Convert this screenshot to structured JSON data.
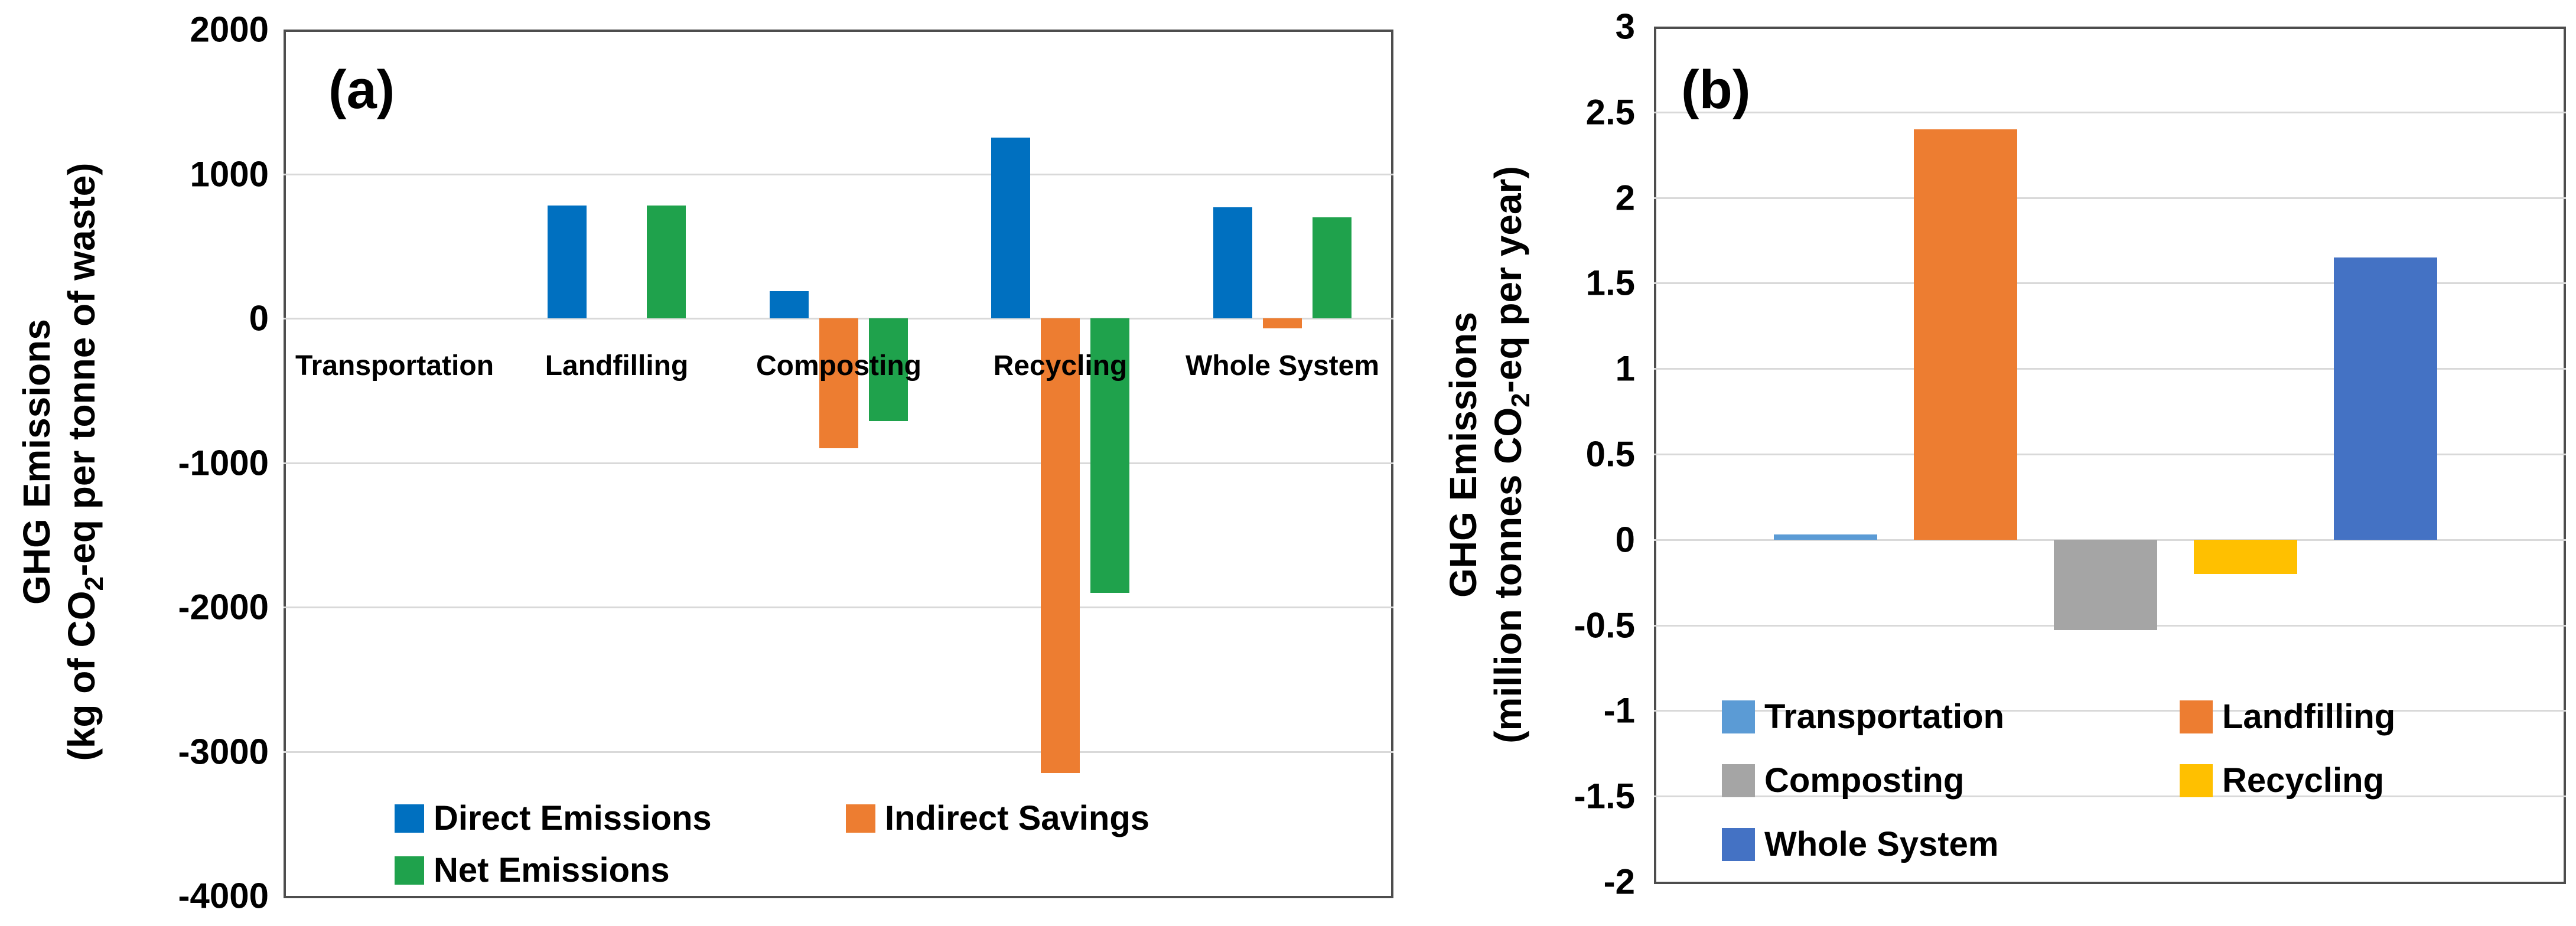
{
  "figure": {
    "panel_a": {
      "panel_label": "(a)",
      "axis_title": {
        "line1": "GHG Emissions",
        "line2_pre": "(kg of CO",
        "line2_sub": "2",
        "line2_post": "-eq per tonne of waste)"
      }
    },
    "panel_b": {
      "panel_label": "(b)",
      "axis_title": {
        "line1": "GHG Emissions",
        "line2_pre": "(million tonnes CO",
        "line2_sub": "2",
        "line2_post": "-eq per year)"
      }
    },
    "colors": {
      "direct_blue": "#0070C0",
      "indirect_orange": "#ED7D31",
      "net_green": "#1FA24C",
      "transportation_lightblue": "#5B9BD5",
      "landfilling_orange": "#ED7D31",
      "composting_gray": "#A5A5A5",
      "recycling_yellow": "#FFC000",
      "whole_system_blue": "#4472C4",
      "gridline": "#D9D9D9",
      "plot_border": "#4D4D4D"
    }
  },
  "chart_data": [
    {
      "type": "bar",
      "grouped": true,
      "panel": "(a)",
      "title": "",
      "ylabel": "GHG Emissions (kg of CO2-eq per tonne of waste)",
      "xlabel": "",
      "grid": true,
      "legend_position": "inside-bottom-left",
      "ylim": [
        -4000,
        2000
      ],
      "yticks": [
        {
          "label": "2000",
          "value": 2000
        },
        {
          "label": "1000",
          "value": 1000
        },
        {
          "label": "0",
          "value": 0
        },
        {
          "label": "-1000",
          "value": -1000
        },
        {
          "label": "-2000",
          "value": -2000
        },
        {
          "label": "-3000",
          "value": -3000
        },
        {
          "label": "-4000",
          "value": -4000
        }
      ],
      "categories": [
        "Transportation",
        "Landfilling",
        "Composting",
        "Recycling",
        "Whole System"
      ],
      "series": [
        {
          "name": "Direct Emissions",
          "color": "#0070C0",
          "values": [
            0,
            780,
            190,
            1250,
            770
          ]
        },
        {
          "name": "Indirect Savings",
          "color": "#ED7D31",
          "values": [
            0,
            0,
            -900,
            -3150,
            -70
          ]
        },
        {
          "name": "Net Emissions",
          "color": "#1FA24C",
          "values": [
            0,
            780,
            -710,
            -1900,
            700
          ]
        }
      ]
    },
    {
      "type": "bar",
      "grouped": false,
      "panel": "(b)",
      "title": "",
      "ylabel": "GHG Emissions (million tonnes CO2-eq per year)",
      "xlabel": "",
      "grid": true,
      "legend_position": "inside-bottom-left",
      "ylim": [
        -2,
        3
      ],
      "yticks": [
        {
          "label": "3",
          "value": 3
        },
        {
          "label": "2.5",
          "value": 2.5
        },
        {
          "label": "2",
          "value": 2
        },
        {
          "label": "1.5",
          "value": 1.5
        },
        {
          "label": "1",
          "value": 1
        },
        {
          "label": "0.5",
          "value": 0.5
        },
        {
          "label": "0",
          "value": 0
        },
        {
          "label": "-0.5",
          "value": -0.5
        },
        {
          "label": "-1",
          "value": -1
        },
        {
          "label": "-1.5",
          "value": -1.5
        },
        {
          "label": "-2",
          "value": -2
        }
      ],
      "categories": [
        "Transportation",
        "Landfilling",
        "Composting",
        "Recycling",
        "Whole System"
      ],
      "series": [
        {
          "name": "GHG Emissions",
          "values": [
            0.03,
            2.4,
            -0.53,
            -0.2,
            1.65
          ]
        }
      ],
      "bar_colors": [
        "#5B9BD5",
        "#ED7D31",
        "#A5A5A5",
        "#FFC000",
        "#4472C4"
      ],
      "legend": [
        {
          "label": "Transportation",
          "color": "#5B9BD5"
        },
        {
          "label": "Landfilling",
          "color": "#ED7D31"
        },
        {
          "label": "Composting",
          "color": "#A5A5A5"
        },
        {
          "label": "Recycling",
          "color": "#FFC000"
        },
        {
          "label": "Whole System",
          "color": "#4472C4"
        }
      ]
    }
  ]
}
